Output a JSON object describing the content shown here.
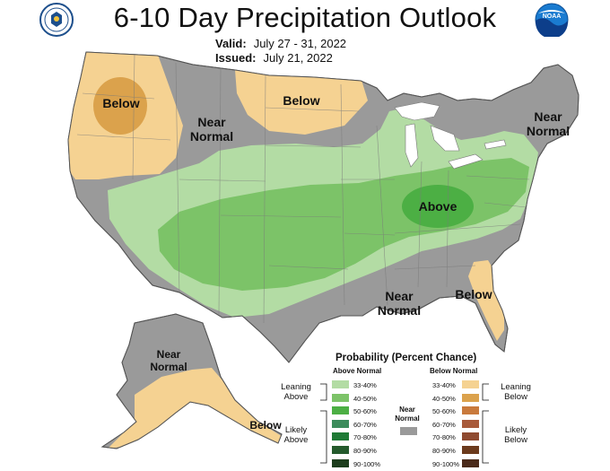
{
  "header": {
    "title": "6-10 Day Precipitation Outlook",
    "valid_label": "Valid:",
    "valid_value": "July 27 - 31, 2022",
    "issued_label": "Issued:",
    "issued_value": "July 21, 2022"
  },
  "logos": {
    "left": "doc-seal",
    "right": "noaa-logo",
    "right_text": "NOAA"
  },
  "map_labels": {
    "below_northwest": "Below",
    "near_normal_west": "Near\nNormal",
    "below_northern_plains": "Below",
    "near_normal_northeast": "Near\nNormal",
    "above_ohio_valley": "Above",
    "near_normal_south": "Near\nNormal",
    "below_southeast": "Below",
    "near_normal_alaska": "Near\nNormal",
    "below_alaska": "Below"
  },
  "legend": {
    "title": "Probability (Percent Chance)",
    "above_header": "Above Normal",
    "below_header": "Below Normal",
    "near_header": "Near\nNormal",
    "leaning_above": "Leaning\nAbove",
    "likely_above": "Likely\nAbove",
    "leaning_below": "Leaning\nBelow",
    "likely_below": "Likely\nBelow",
    "above_ranges": [
      "33-40%",
      "40-50%",
      "50-60%",
      "60-70%",
      "70-80%",
      "80-90%",
      "90-100%"
    ],
    "below_ranges": [
      "33-40%",
      "40-50%",
      "50-60%",
      "60-70%",
      "70-80%",
      "80-90%",
      "90-100%"
    ],
    "above_colors": [
      "#b3dca4",
      "#7cc368",
      "#4caf44",
      "#3c8c5c",
      "#1f7a35",
      "#245a2c",
      "#1c3d1c"
    ],
    "below_colors": [
      "#f5d292",
      "#dba24c",
      "#c97a3c",
      "#a85a3a",
      "#8f4a30",
      "#6b3a1c",
      "#4a2a1a"
    ],
    "near_color": "#9a9a9a"
  },
  "colors": {
    "near_normal": "#9a9a9a",
    "above_33_40": "#b3dca4",
    "above_40_50": "#7cc368",
    "above_50_60": "#4caf44",
    "below_33_40": "#f5d292",
    "below_40_50": "#dba24c"
  }
}
